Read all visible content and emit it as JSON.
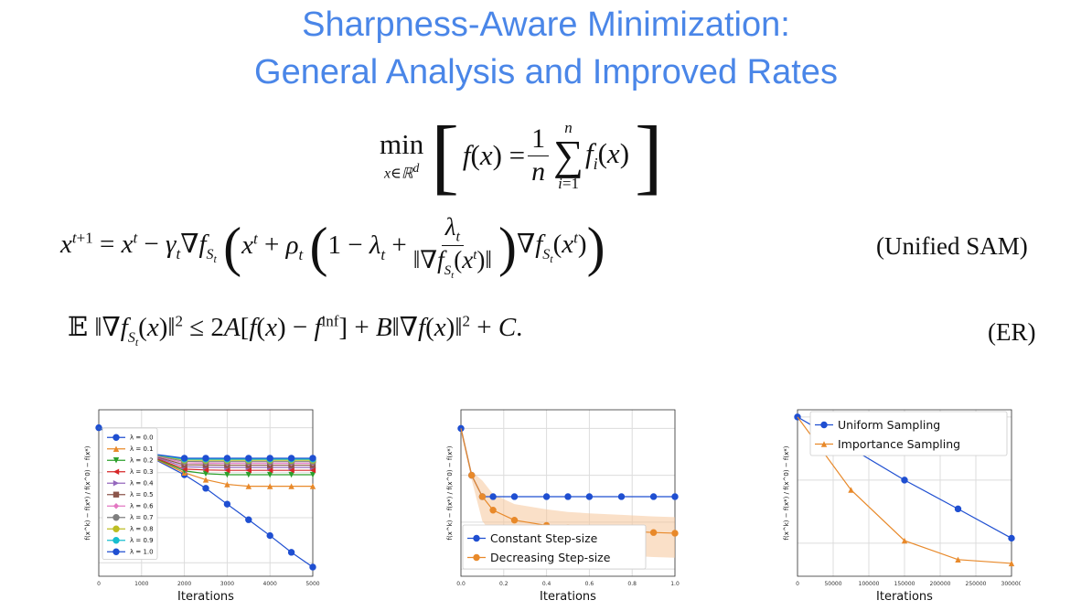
{
  "slide": {
    "title_line_1": "Sharpness-Aware Minimization:",
    "title_line_2": "General Analysis and Improved Rates",
    "eq_unified_tag": "(Unified SAM)",
    "eq_er_tag": "(ER)",
    "colors": {
      "title": "#4a86e8",
      "blue": "#1f4fd1",
      "orange": "#e8892a"
    }
  },
  "chart_data": [
    {
      "type": "line",
      "ylabel": "f(x^k) − f(x*) / f(x^0) − f(x*)",
      "xlabel": "Iterations",
      "xticks": [
        "0",
        "1000",
        "2000",
        "3000",
        "4000",
        "5000"
      ],
      "yscale": "log",
      "xlim": [
        0,
        5000
      ],
      "grid": true,
      "legend_position": "upper left",
      "x": [
        0,
        1000,
        2000,
        2500,
        3000,
        3500,
        4000,
        4500,
        5000
      ],
      "series": [
        {
          "name": "λ = 0.0",
          "color": "#1f4fd1",
          "marker": "o",
          "values": [
            1.0,
            0.28,
            0.09,
            0.045,
            0.02,
            0.009,
            0.004,
            0.0017,
            0.0008
          ]
        },
        {
          "name": "λ = 0.1",
          "color": "#e8892a",
          "marker": "^",
          "values": [
            1.0,
            0.28,
            0.1,
            0.07,
            0.055,
            0.05,
            0.05,
            0.05,
            0.05
          ]
        },
        {
          "name": "λ = 0.2",
          "color": "#2ca02c",
          "marker": "v",
          "values": [
            1.0,
            0.28,
            0.11,
            0.095,
            0.09,
            0.09,
            0.09,
            0.09,
            0.09
          ]
        },
        {
          "name": "λ = 0.3",
          "color": "#d62728",
          "marker": "<",
          "values": [
            1.0,
            0.28,
            0.12,
            0.115,
            0.113,
            0.113,
            0.113,
            0.113,
            0.113
          ]
        },
        {
          "name": "λ = 0.4",
          "color": "#9467bd",
          "marker": ">",
          "values": [
            1.0,
            0.28,
            0.135,
            0.132,
            0.131,
            0.131,
            0.131,
            0.131,
            0.131
          ]
        },
        {
          "name": "λ = 0.5",
          "color": "#8c564b",
          "marker": "s",
          "values": [
            1.0,
            0.28,
            0.15,
            0.148,
            0.147,
            0.147,
            0.147,
            0.147,
            0.147
          ]
        },
        {
          "name": "λ = 0.6",
          "color": "#e377c2",
          "marker": "D",
          "values": [
            1.0,
            0.28,
            0.165,
            0.163,
            0.162,
            0.162,
            0.162,
            0.162,
            0.162
          ]
        },
        {
          "name": "λ = 0.7",
          "color": "#7f7f7f",
          "marker": "P",
          "values": [
            1.0,
            0.28,
            0.178,
            0.176,
            0.176,
            0.176,
            0.176,
            0.176,
            0.176
          ]
        },
        {
          "name": "λ = 0.8",
          "color": "#bcbd22",
          "marker": "o",
          "values": [
            1.0,
            0.28,
            0.19,
            0.189,
            0.189,
            0.189,
            0.189,
            0.189,
            0.189
          ]
        },
        {
          "name": "λ = 0.9",
          "color": "#17becf",
          "marker": "*",
          "values": [
            1.0,
            0.28,
            0.2,
            0.2,
            0.2,
            0.2,
            0.2,
            0.2,
            0.2
          ]
        },
        {
          "name": "λ = 1.0",
          "color": "#1f4fd1",
          "marker": "o",
          "values": [
            1.0,
            0.28,
            0.21,
            0.21,
            0.21,
            0.21,
            0.21,
            0.21,
            0.21
          ]
        }
      ]
    },
    {
      "type": "line",
      "ylabel": "f(x^k) − f(x*) / f(x^0) − f(x*)",
      "xlabel": "Iterations",
      "xticks": [
        "0.0",
        "0.2",
        "0.4",
        "0.6",
        "0.8",
        "1.0"
      ],
      "yscale": "log",
      "xlim": [
        0,
        1
      ],
      "grid": true,
      "legend_position": "lower left",
      "x": [
        0,
        0.05,
        0.1,
        0.15,
        0.25,
        0.4,
        0.5,
        0.6,
        0.75,
        0.9,
        1.0
      ],
      "series": [
        {
          "name": "Constant Step-size",
          "color": "#1f4fd1",
          "marker": "o",
          "values": [
            1.0,
            0.1,
            0.035,
            0.035,
            0.035,
            0.035,
            0.035,
            0.035,
            0.035,
            0.035,
            0.035
          ]
        },
        {
          "name": "Decreasing Step-size",
          "color": "#e8892a",
          "marker": "o",
          "values": [
            1.0,
            0.1,
            0.035,
            0.018,
            0.011,
            0.0085,
            0.0075,
            0.007,
            0.0065,
            0.006,
            0.0058
          ]
        }
      ]
    },
    {
      "type": "line",
      "ylabel": "f(x^k) − f(x*) / f(x^0) − f(x*)",
      "xlabel": "Iterations",
      "xticks": [
        "0",
        "50000",
        "100000",
        "150000",
        "200000",
        "250000",
        "300000"
      ],
      "yscale": "log",
      "xlim": [
        0,
        300000
      ],
      "grid": true,
      "legend_position": "upper right",
      "x": [
        0,
        75000,
        150000,
        225000,
        300000
      ],
      "series": [
        {
          "name": "Uniform Sampling",
          "color": "#1f4fd1",
          "marker": "o",
          "values": [
            1.0,
            0.32,
            0.1,
            0.035,
            0.012
          ]
        },
        {
          "name": "Importance Sampling",
          "color": "#e8892a",
          "marker": "^",
          "values": [
            1.0,
            0.07,
            0.011,
            0.0055,
            0.0048
          ]
        }
      ]
    }
  ]
}
